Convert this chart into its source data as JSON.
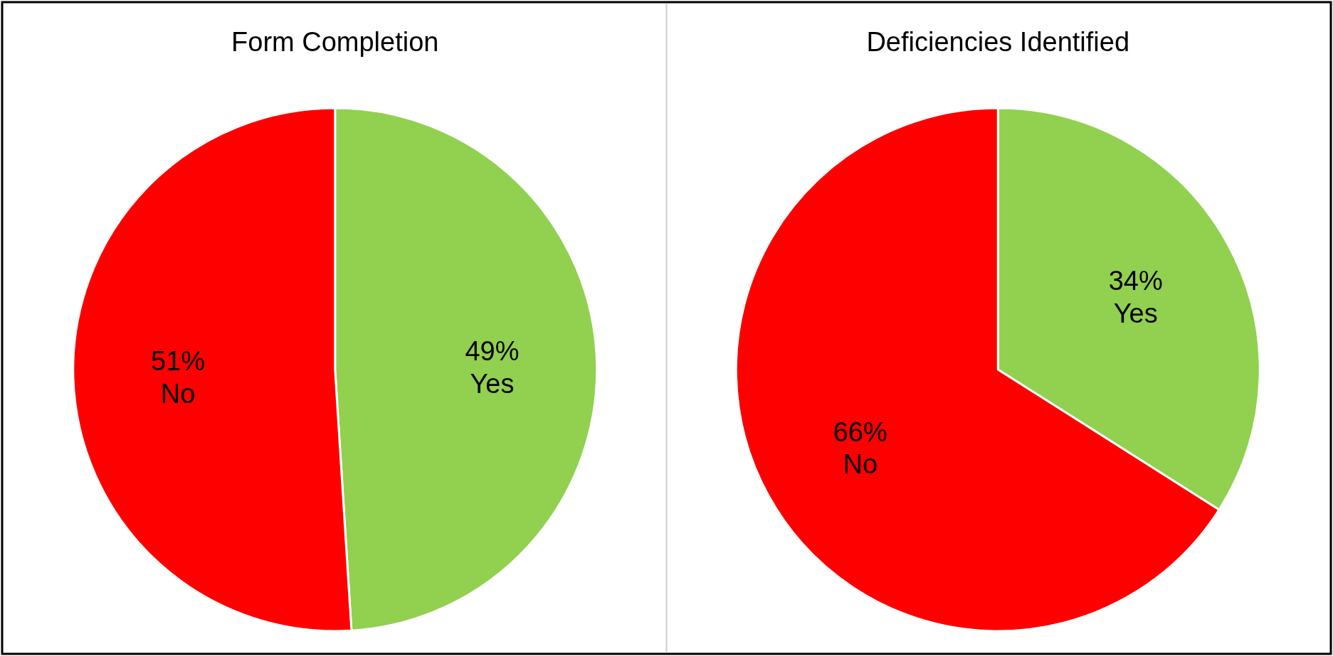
{
  "chart_data": [
    {
      "type": "pie",
      "title": "Form Completion",
      "categories": [
        "Yes",
        "No"
      ],
      "values": [
        49,
        51
      ],
      "colors": [
        "#92d050",
        "#ff0000"
      ],
      "value_labels": [
        "49%",
        "51%"
      ]
    },
    {
      "type": "pie",
      "title": "Deficiencies Identified",
      "categories": [
        "Yes",
        "No"
      ],
      "values": [
        34,
        66
      ],
      "colors": [
        "#92d050",
        "#ff0000"
      ],
      "value_labels": [
        "34%",
        "66%"
      ]
    }
  ]
}
